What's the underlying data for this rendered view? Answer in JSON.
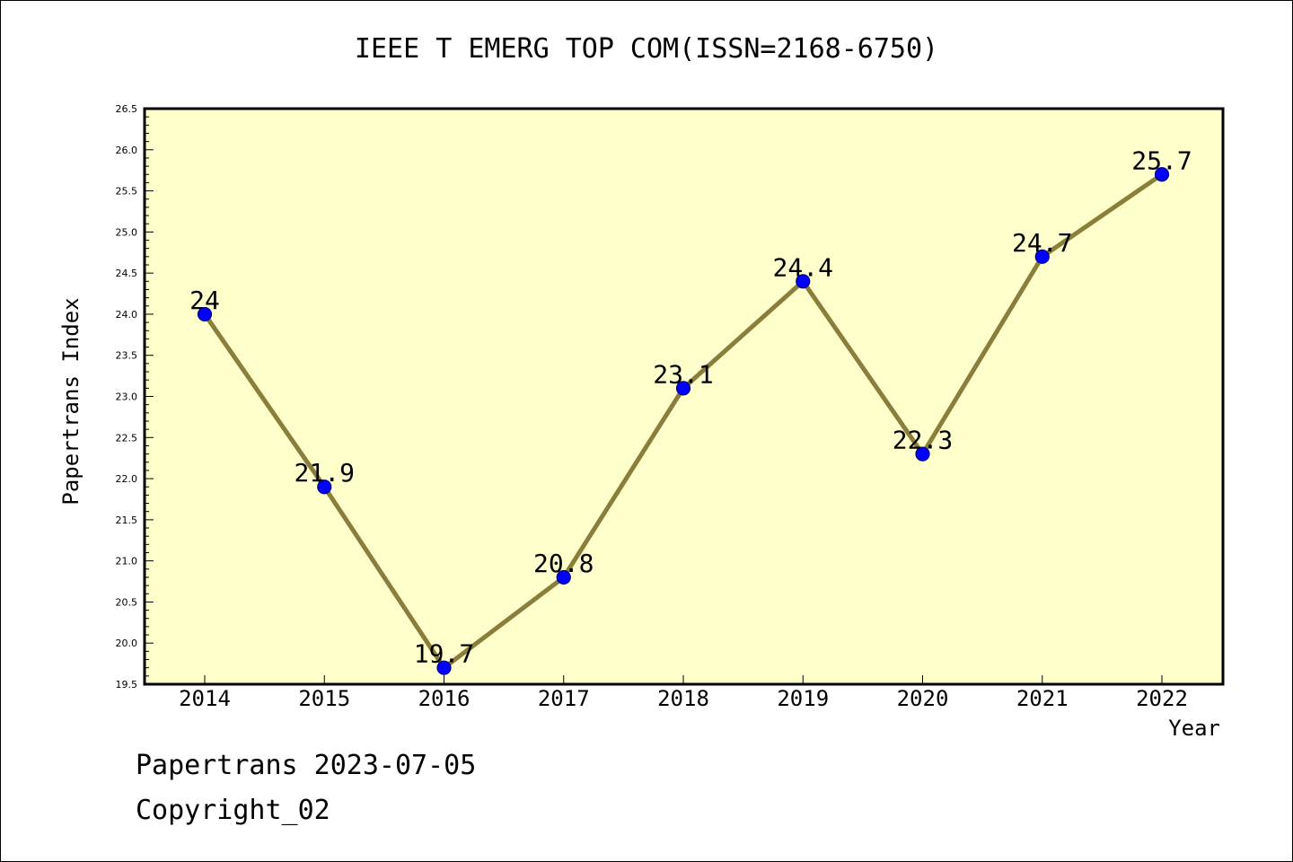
{
  "chart_data": {
    "type": "line",
    "title": "IEEE T EMERG TOP COM(ISSN=2168-6750)",
    "xlabel": "Year",
    "ylabel": "Papertrans Index",
    "categories": [
      "2014",
      "2015",
      "2016",
      "2017",
      "2018",
      "2019",
      "2020",
      "2021",
      "2022"
    ],
    "values": [
      24,
      21.9,
      19.7,
      20.8,
      23.1,
      24.4,
      22.3,
      24.7,
      25.7
    ],
    "value_labels": [
      "24",
      "21.9",
      "19.7",
      "20.8",
      "23.1",
      "24.4",
      "22.3",
      "24.7",
      "25.7"
    ],
    "ylim": [
      19.5,
      26.5
    ],
    "yticks": [
      "19.5",
      "20.0",
      "20.5",
      "21.0",
      "21.5",
      "22.0",
      "22.5",
      "23.0",
      "23.5",
      "24.0",
      "24.5",
      "25.0",
      "25.5",
      "26.0",
      "26.5"
    ],
    "grid": false,
    "colors": {
      "plot_background": "#ffffcc",
      "line": "#8b7d3a",
      "marker": "#0000ff",
      "marker_edge": "#000080"
    }
  },
  "footer": {
    "line1": "Papertrans 2023-07-05",
    "line2": "Copyright_02"
  }
}
